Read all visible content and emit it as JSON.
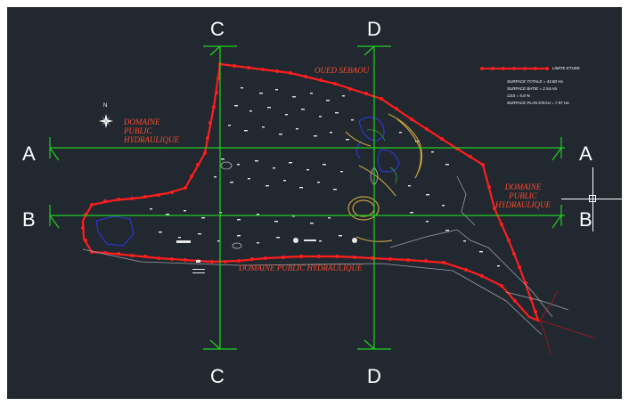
{
  "drawing": {
    "sections": {
      "a_left": "A",
      "a_right": "A",
      "b_left": "B",
      "b_right": "B",
      "c_top": "C",
      "c_bottom": "C",
      "d_top": "D",
      "d_bottom": "D"
    },
    "labels": {
      "oued": "OUED SEBAOU",
      "domaine_left": [
        "DOMAINE",
        "PUBLIC",
        "HYDRAULIQUE"
      ],
      "domaine_right": [
        "DOMAINE",
        "PUBLIC",
        "HYDRAULIQUE"
      ],
      "domaine_bottom": "DOMAINE PUBLIC HYDRAULIQUE",
      "north": "N"
    },
    "legend": {
      "title": "LIMITE ETUDE",
      "lines": [
        "SURFACE TOTALE = 43.80 Ha",
        "SURFACE BATIE = 2.54 Ha",
        "CES = 5.8 %",
        "SURFACE PLAN D'EAU = 7.97 Ha"
      ]
    },
    "colors": {
      "background": "#212830",
      "boundary": "#ff1e1e",
      "section_lines": "#22d022",
      "labels": "#ff4a2a",
      "water": "#2233cc",
      "paths": "#c8a040"
    }
  }
}
